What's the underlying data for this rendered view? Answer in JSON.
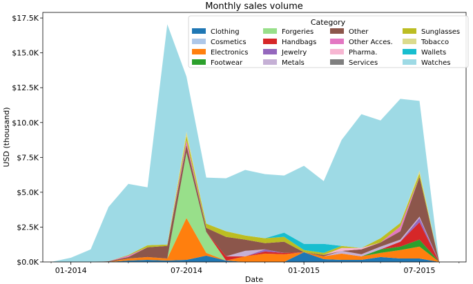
{
  "chart_data": {
    "type": "area",
    "stacked": true,
    "title": "Monthly sales volume",
    "xlabel": "Date",
    "ylabel": "USD (thousand)",
    "x": [
      "2013-12",
      "2014-01",
      "2014-02",
      "2014-03",
      "2014-04",
      "2014-05",
      "2014-06",
      "2014-07",
      "2014-08",
      "2014-09",
      "2014-10",
      "2014-11",
      "2014-12",
      "2015-01",
      "2015-02",
      "2015-03",
      "2015-04",
      "2015-05",
      "2015-06",
      "2015-07",
      "2015-08"
    ],
    "xlim": [
      "2013-11-18",
      "2015-09-12"
    ],
    "ylim": [
      0,
      17900
    ],
    "xticks": [
      {
        "date": "2014-01",
        "label": "01-2014"
      },
      {
        "date": "2014-07",
        "label": "07-2014"
      },
      {
        "date": "2015-01",
        "label": "01-2015"
      },
      {
        "date": "2015-07",
        "label": "07-2015"
      }
    ],
    "yticks": [
      {
        "value": 0,
        "label": "$0.0K"
      },
      {
        "value": 2500,
        "label": "$2.5K"
      },
      {
        "value": 5000,
        "label": "$5.0K"
      },
      {
        "value": 7500,
        "label": "$7.5K"
      },
      {
        "value": 10000,
        "label": "$10.0K"
      },
      {
        "value": 12500,
        "label": "$12.5K"
      },
      {
        "value": 15000,
        "label": "$15.0K"
      },
      {
        "value": 17500,
        "label": "$17.5K"
      }
    ],
    "grid": false,
    "legend": {
      "title": "Category",
      "placement": "top-right",
      "columns": 4
    },
    "series": [
      {
        "name": "Clothing",
        "color": "#1f77b4",
        "values": [
          0,
          0,
          0,
          0,
          100,
          150,
          100,
          150,
          450,
          100,
          0,
          0,
          0,
          700,
          200,
          150,
          150,
          350,
          250,
          250,
          0
        ]
      },
      {
        "name": "Cosmetics",
        "color": "#aec7e8",
        "values": [
          0,
          0,
          0,
          0,
          0,
          0,
          0,
          0,
          0,
          0,
          0,
          0,
          0,
          0,
          0,
          0,
          0,
          0,
          0,
          0,
          0
        ]
      },
      {
        "name": "Electronics",
        "color": "#ff7f0e",
        "values": [
          0,
          0,
          0,
          0,
          150,
          200,
          150,
          3000,
          200,
          0,
          400,
          600,
          550,
          0,
          200,
          450,
          250,
          300,
          600,
          850,
          0
        ]
      },
      {
        "name": "Footwear",
        "color": "#2ca02c",
        "values": [
          0,
          0,
          0,
          0,
          0,
          0,
          0,
          0,
          0,
          0,
          0,
          0,
          0,
          0,
          0,
          0,
          0,
          250,
          250,
          500,
          0
        ]
      },
      {
        "name": "Forgeries",
        "color": "#98df8a",
        "values": [
          0,
          0,
          0,
          0,
          0,
          0,
          0,
          4700,
          1500,
          0,
          0,
          0,
          0,
          0,
          0,
          0,
          0,
          0,
          0,
          0,
          0
        ]
      },
      {
        "name": "Handbags",
        "color": "#d62728",
        "values": [
          0,
          0,
          0,
          0,
          0,
          0,
          0,
          0,
          0,
          300,
          0,
          150,
          100,
          0,
          0,
          0,
          0,
          0,
          350,
          1250,
          0
        ]
      },
      {
        "name": "Jewelry",
        "color": "#9467bd",
        "values": [
          0,
          0,
          0,
          0,
          0,
          0,
          0,
          0,
          0,
          0,
          0,
          150,
          0,
          0,
          0,
          0,
          0,
          0,
          0,
          300,
          0
        ]
      },
      {
        "name": "Metals",
        "color": "#c5b0d5",
        "values": [
          0,
          0,
          0,
          0,
          0,
          0,
          0,
          0,
          0,
          0,
          400,
          0,
          0,
          0,
          0,
          200,
          150,
          200,
          150,
          100,
          0
        ]
      },
      {
        "name": "Other",
        "color": "#8c564b",
        "values": [
          0,
          0,
          0,
          50,
          100,
          700,
          900,
          550,
          300,
          1400,
          800,
          450,
          800,
          0,
          100,
          0,
          350,
          300,
          600,
          2850,
          0
        ]
      },
      {
        "name": "Other Acces.",
        "color": "#e377c2",
        "values": [
          0,
          0,
          0,
          0,
          100,
          0,
          0,
          300,
          0,
          0,
          0,
          0,
          0,
          0,
          0,
          0,
          0,
          0,
          350,
          0,
          0
        ]
      },
      {
        "name": "Pharma.",
        "color": "#f7b6d2",
        "values": [
          0,
          0,
          0,
          0,
          0,
          0,
          0,
          0,
          0,
          0,
          0,
          0,
          0,
          0,
          0,
          200,
          100,
          0,
          0,
          0,
          0
        ]
      },
      {
        "name": "Services",
        "color": "#7f7f7f",
        "values": [
          0,
          0,
          0,
          0,
          0,
          0,
          0,
          0,
          0,
          0,
          0,
          0,
          0,
          0,
          0,
          0,
          0,
          0,
          0,
          0,
          0
        ]
      },
      {
        "name": "Sunglasses",
        "color": "#bcbd22",
        "values": [
          0,
          0,
          0,
          0,
          50,
          150,
          100,
          350,
          300,
          400,
          300,
          350,
          350,
          150,
          150,
          150,
          0,
          300,
          250,
          250,
          0
        ]
      },
      {
        "name": "Tobacco",
        "color": "#dbdb8d",
        "values": [
          0,
          0,
          0,
          0,
          0,
          0,
          0,
          300,
          0,
          0,
          0,
          0,
          0,
          0,
          0,
          0,
          0,
          0,
          0,
          200,
          0
        ]
      },
      {
        "name": "Wallets",
        "color": "#17becf",
        "values": [
          0,
          0,
          0,
          0,
          0,
          0,
          0,
          0,
          0,
          0,
          0,
          0,
          300,
          450,
          650,
          0,
          0,
          0,
          0,
          0,
          0
        ]
      },
      {
        "name": "Watches",
        "color": "#9edae5",
        "values": [
          0,
          300,
          900,
          3900,
          5100,
          4150,
          15800,
          3950,
          3300,
          3800,
          4700,
          4600,
          4100,
          5600,
          4500,
          7600,
          9600,
          8450,
          8900,
          5000,
          0
        ]
      }
    ]
  }
}
